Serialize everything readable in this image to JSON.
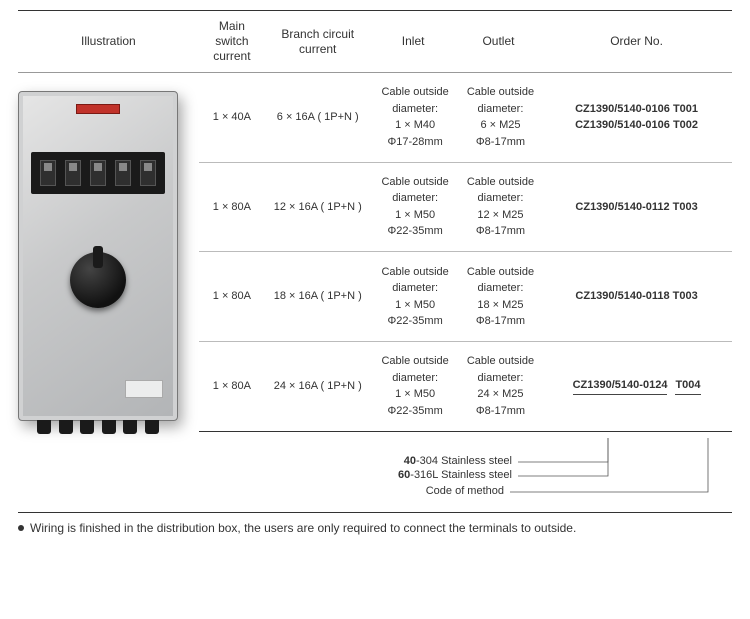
{
  "columns": {
    "illustration": "Illustration",
    "main_switch": "Main switch\ncurrent",
    "branch_circuit": "Branch circuit\ncurrent",
    "inlet": "Inlet",
    "outlet": "Outlet",
    "order_no": "Order No."
  },
  "rows": [
    {
      "main": "1 × 40A",
      "branch": "6 × 16A ( 1P+N )",
      "inlet": {
        "l1": "Cable outside",
        "l2": "diameter:",
        "l3": "1 × M40",
        "l4": "Φ17-28mm"
      },
      "outlet": {
        "l1": "Cable outside",
        "l2": "diameter:",
        "l3": "6 × M25",
        "l4": "Φ8-17mm"
      },
      "orders": [
        "CZ1390/5140-0106  T001",
        "CZ1390/5140-0106  T002"
      ]
    },
    {
      "main": "1 × 80A",
      "branch": "12 × 16A ( 1P+N )",
      "inlet": {
        "l1": "Cable outside",
        "l2": "diameter:",
        "l3": "1 × M50",
        "l4": "Φ22-35mm"
      },
      "outlet": {
        "l1": "Cable outside",
        "l2": "diameter:",
        "l3": "12 × M25",
        "l4": "Φ8-17mm"
      },
      "orders": [
        "CZ1390/5140-0112  T003"
      ]
    },
    {
      "main": "1 × 80A",
      "branch": "18 × 16A ( 1P+N )",
      "inlet": {
        "l1": "Cable outside",
        "l2": "diameter:",
        "l3": "1 × M50",
        "l4": "Φ22-35mm"
      },
      "outlet": {
        "l1": "Cable outside",
        "l2": "diameter:",
        "l3": "18 × M25",
        "l4": "Φ8-17mm"
      },
      "orders": [
        "CZ1390/5140-0118  T003"
      ]
    },
    {
      "main": "1 × 80A",
      "branch": "24 × 16A ( 1P+N )",
      "inlet": {
        "l1": "Cable outside",
        "l2": "diameter:",
        "l3": "1 × M50",
        "l4": "Φ22-35mm"
      },
      "outlet": {
        "l1": "Cable outside",
        "l2": "diameter:",
        "l3": "24 × M25",
        "l4": "Φ8-17mm"
      },
      "orders": [
        "CZ1390/5140-0124  T004"
      ],
      "segmented": {
        "p1": "CZ1390/51",
        "p2": "40",
        "p3": "-0124",
        "p4": "T004"
      }
    }
  ],
  "legend": {
    "steel40_b": "40",
    "steel40_t": "-304 Stainless steel",
    "steel60_b": "60",
    "steel60_t": "-316L  Stainless steel",
    "code_of_method": "Code of method"
  },
  "footnote": "Wiring is finished in the distribution box, the users are only required to connect the terminals to outside.",
  "style": {
    "border_heavy": "#333333",
    "border_light": "#bbbbbb",
    "text_color": "#333333",
    "font_size_header": 12,
    "font_size_cell": 11
  }
}
